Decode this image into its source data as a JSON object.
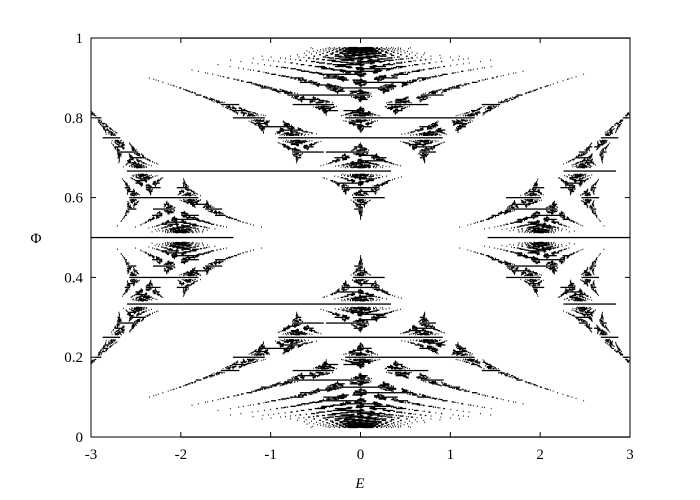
{
  "chart_data": {
    "type": "scatter",
    "title": "",
    "xlabel": "E",
    "ylabel": "Φ",
    "xlim": [
      -3,
      3
    ],
    "ylim": [
      0,
      1
    ],
    "xticks": [
      "-3",
      "-2",
      "-1",
      "0",
      "1",
      "2",
      "3"
    ],
    "yticks": [
      "0",
      "0.2",
      "0.4",
      "0.6",
      "0.8",
      "1"
    ],
    "grid": false,
    "legend": "none",
    "marker_color": "#000000",
    "flux_denominator_max": 42,
    "series": [
      {
        "x": "E (energy eigenvalues of the Harper equation)",
        "y": "Φ (magnetic flux, rational p/q)"
      }
    ]
  }
}
